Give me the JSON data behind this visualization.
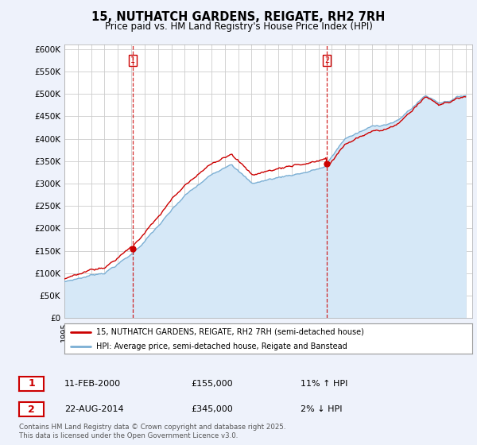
{
  "title": "15, NUTHATCH GARDENS, REIGATE, RH2 7RH",
  "subtitle": "Price paid vs. HM Land Registry's House Price Index (HPI)",
  "ylabel_ticks": [
    "£0",
    "£50K",
    "£100K",
    "£150K",
    "£200K",
    "£250K",
    "£300K",
    "£350K",
    "£400K",
    "£450K",
    "£500K",
    "£550K",
    "£600K"
  ],
  "ylim": [
    0,
    610000
  ],
  "yticks": [
    0,
    50000,
    100000,
    150000,
    200000,
    250000,
    300000,
    350000,
    400000,
    450000,
    500000,
    550000,
    600000
  ],
  "price_paid_color": "#cc0000",
  "hpi_color": "#7bafd4",
  "hpi_fill_color": "#d6e8f7",
  "vline_color": "#cc0000",
  "purchase1_year": 2000.11,
  "purchase1_price": 155000,
  "purchase1_label": "1",
  "purchase1_date": "11-FEB-2000",
  "purchase1_hpi_pct": "11% ↑ HPI",
  "purchase2_year": 2014.64,
  "purchase2_price": 345000,
  "purchase2_label": "2",
  "purchase2_date": "22-AUG-2014",
  "purchase2_hpi_pct": "2% ↓ HPI",
  "legend_line1": "15, NUTHATCH GARDENS, REIGATE, RH2 7RH (semi-detached house)",
  "legend_line2": "HPI: Average price, semi-detached house, Reigate and Banstead",
  "footnote": "Contains HM Land Registry data © Crown copyright and database right 2025.\nThis data is licensed under the Open Government Licence v3.0.",
  "background_color": "#eef2fb",
  "plot_bg_color": "#ffffff",
  "grid_color": "#cccccc",
  "title_fontsize": 10.5,
  "subtitle_fontsize": 8.5,
  "tick_fontsize": 7.5
}
